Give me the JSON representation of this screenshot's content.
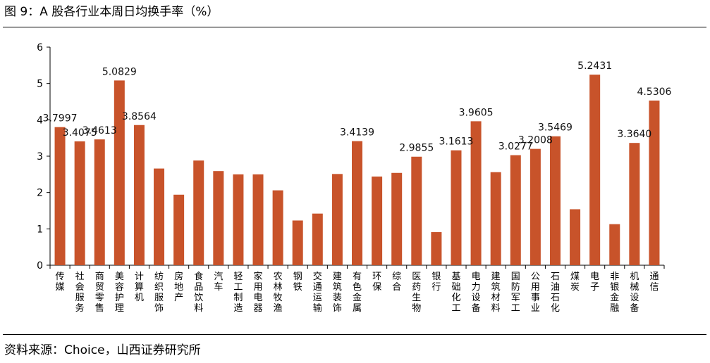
{
  "header": {
    "title": "图 9：A 股各行业本周日均换手率（%）"
  },
  "footer": {
    "source": "资料来源：Choice，山西证券研究所"
  },
  "colors": {
    "bar": "#c8532a",
    "axis": "#000000"
  },
  "chart_data": {
    "type": "bar",
    "title": "",
    "xlabel": "",
    "ylabel": "",
    "ylim": [
      0,
      6
    ],
    "yticks": [
      0,
      1,
      2,
      3,
      4,
      5,
      6
    ],
    "grid": false,
    "legend": "none",
    "categories": [
      "传媒",
      "社会服务",
      "商贸零售",
      "美容护理",
      "计算机",
      "纺织服饰",
      "房地产",
      "食品饮料",
      "汽车",
      "轻工制造",
      "家用电器",
      "农林牧渔",
      "钢铁",
      "交通运输",
      "建筑装饰",
      "有色金属",
      "环保",
      "综合",
      "医药生物",
      "银行",
      "基础化工",
      "电力设备",
      "建筑材料",
      "国防军工",
      "公用事业",
      "石油石化",
      "煤炭",
      "电子",
      "非银金融",
      "机械设备",
      "通信"
    ],
    "values": [
      3.7997,
      3.4075,
      3.4613,
      5.0829,
      3.8564,
      2.66,
      1.94,
      2.88,
      2.59,
      2.5,
      2.5,
      2.06,
      1.23,
      1.42,
      2.51,
      3.4139,
      2.44,
      2.54,
      2.9855,
      0.91,
      3.1613,
      3.9605,
      2.56,
      3.0277,
      3.2008,
      3.5469,
      1.54,
      5.2431,
      1.13,
      3.364,
      4.5306
    ],
    "data_labels": [
      "3.7997",
      "3.4075",
      "3.4613",
      "5.0829",
      "3.8564",
      "",
      "",
      "",
      "",
      "",
      "",
      "",
      "",
      "",
      "",
      "3.4139",
      "",
      "",
      "2.9855",
      "",
      "3.1613",
      "3.9605",
      "",
      "3.0277",
      "3.2008",
      "3.5469",
      "",
      "5.2431",
      "",
      "3.3640",
      "4.5306"
    ]
  }
}
